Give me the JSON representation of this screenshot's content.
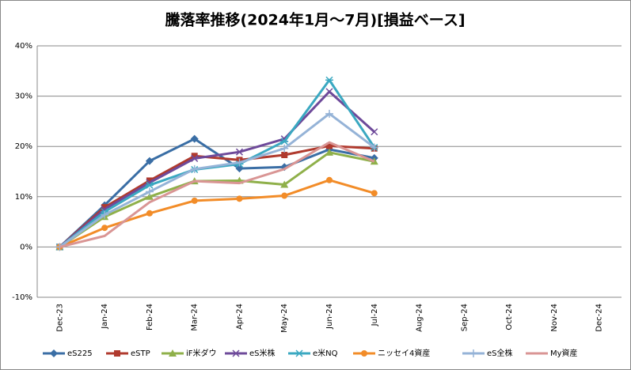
{
  "chart_data": {
    "type": "line",
    "title": "騰落率推移(2024年1月～7月)[損益ベース]",
    "categories": [
      "Dec-23",
      "Jan-24",
      "Feb-24",
      "Mar-24",
      "Apr-24",
      "May-24",
      "Jun-24",
      "Jul-24",
      "Aug-24",
      "Sep-24",
      "Oct-24",
      "Nov-24",
      "Dec-24"
    ],
    "ylim": [
      -10,
      40
    ],
    "yticks": [
      {
        "value": -10,
        "label": "-10%"
      },
      {
        "value": 0,
        "label": "0%"
      },
      {
        "value": 10,
        "label": "10%"
      },
      {
        "value": 20,
        "label": "20%"
      },
      {
        "value": 30,
        "label": "30%"
      },
      {
        "value": 40,
        "label": "40%"
      }
    ],
    "grid": true,
    "legend": "bottom",
    "series": [
      {
        "name": "eS225",
        "color": "#3a6ea5",
        "marker": "diamond",
        "values": [
          0,
          8.3,
          17.1,
          21.5,
          15.6,
          15.9,
          19.4,
          17.7,
          null,
          null,
          null,
          null,
          null
        ]
      },
      {
        "name": "eSTP",
        "color": "#b03a2e",
        "marker": "square",
        "values": [
          0,
          7.9,
          13.2,
          18.1,
          17.3,
          18.3,
          20.1,
          19.6,
          null,
          null,
          null,
          null,
          null
        ]
      },
      {
        "name": "iF米ダウ",
        "color": "#8fb04a",
        "marker": "triangle",
        "values": [
          0,
          6.0,
          10.0,
          13.1,
          13.2,
          12.4,
          18.8,
          17.0,
          null,
          null,
          null,
          null,
          null
        ]
      },
      {
        "name": "eS米株",
        "color": "#6e4a9a",
        "marker": "x",
        "values": [
          0,
          7.5,
          12.8,
          17.6,
          18.9,
          21.5,
          30.9,
          22.9,
          null,
          null,
          null,
          null,
          null
        ]
      },
      {
        "name": "e米NQ",
        "color": "#3aa8c1",
        "marker": "star",
        "values": [
          0,
          7.0,
          12.3,
          15.4,
          16.5,
          21.0,
          33.2,
          19.8,
          null,
          null,
          null,
          null,
          null
        ]
      },
      {
        "name": "ニッセイ4資産",
        "color": "#f28c28",
        "marker": "circle",
        "values": [
          0,
          3.8,
          6.7,
          9.2,
          9.6,
          10.2,
          13.3,
          10.7,
          null,
          null,
          null,
          null,
          null
        ]
      },
      {
        "name": "eS全株",
        "color": "#95b3d7",
        "marker": "plus",
        "values": [
          0,
          6.4,
          11.0,
          15.5,
          16.8,
          19.6,
          26.5,
          19.8,
          null,
          null,
          null,
          null,
          null
        ]
      },
      {
        "name": "My資産",
        "color": "#d99594",
        "marker": "none",
        "values": [
          0,
          2.2,
          8.9,
          13.1,
          12.7,
          15.5,
          20.8,
          17.0,
          null,
          null,
          null,
          null,
          null
        ]
      }
    ]
  }
}
